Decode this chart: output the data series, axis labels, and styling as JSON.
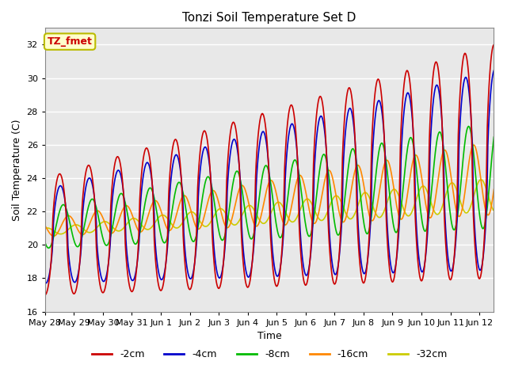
{
  "title": "Tonzi Soil Temperature Set D",
  "xlabel": "Time",
  "ylabel": "Soil Temperature (C)",
  "ylim": [
    16,
    33
  ],
  "yticks": [
    16,
    18,
    20,
    22,
    24,
    26,
    28,
    30,
    32
  ],
  "legend_labels": [
    "-2cm",
    "-4cm",
    "-8cm",
    "-16cm",
    "-32cm"
  ],
  "legend_colors": [
    "#cc0000",
    "#0000cc",
    "#00bb00",
    "#ff8800",
    "#cccc00"
  ],
  "annotation_text": "TZ_fmet",
  "annotation_bg": "#ffffcc",
  "annotation_border": "#bbbb00",
  "bg_color": "#e8e8e8",
  "grid_color": "#ffffff",
  "x_tick_labels": [
    "May 28",
    "May 29",
    "May 30",
    "May 31",
    "Jun 1",
    "Jun 2",
    "Jun 3",
    "Jun 4",
    "Jun 5",
    "Jun 6",
    "Jun 7",
    "Jun 8",
    "Jun 9",
    "Jun 10",
    "Jun 11",
    "Jun 12"
  ],
  "n_days": 15.5,
  "pts_per_day": 48
}
